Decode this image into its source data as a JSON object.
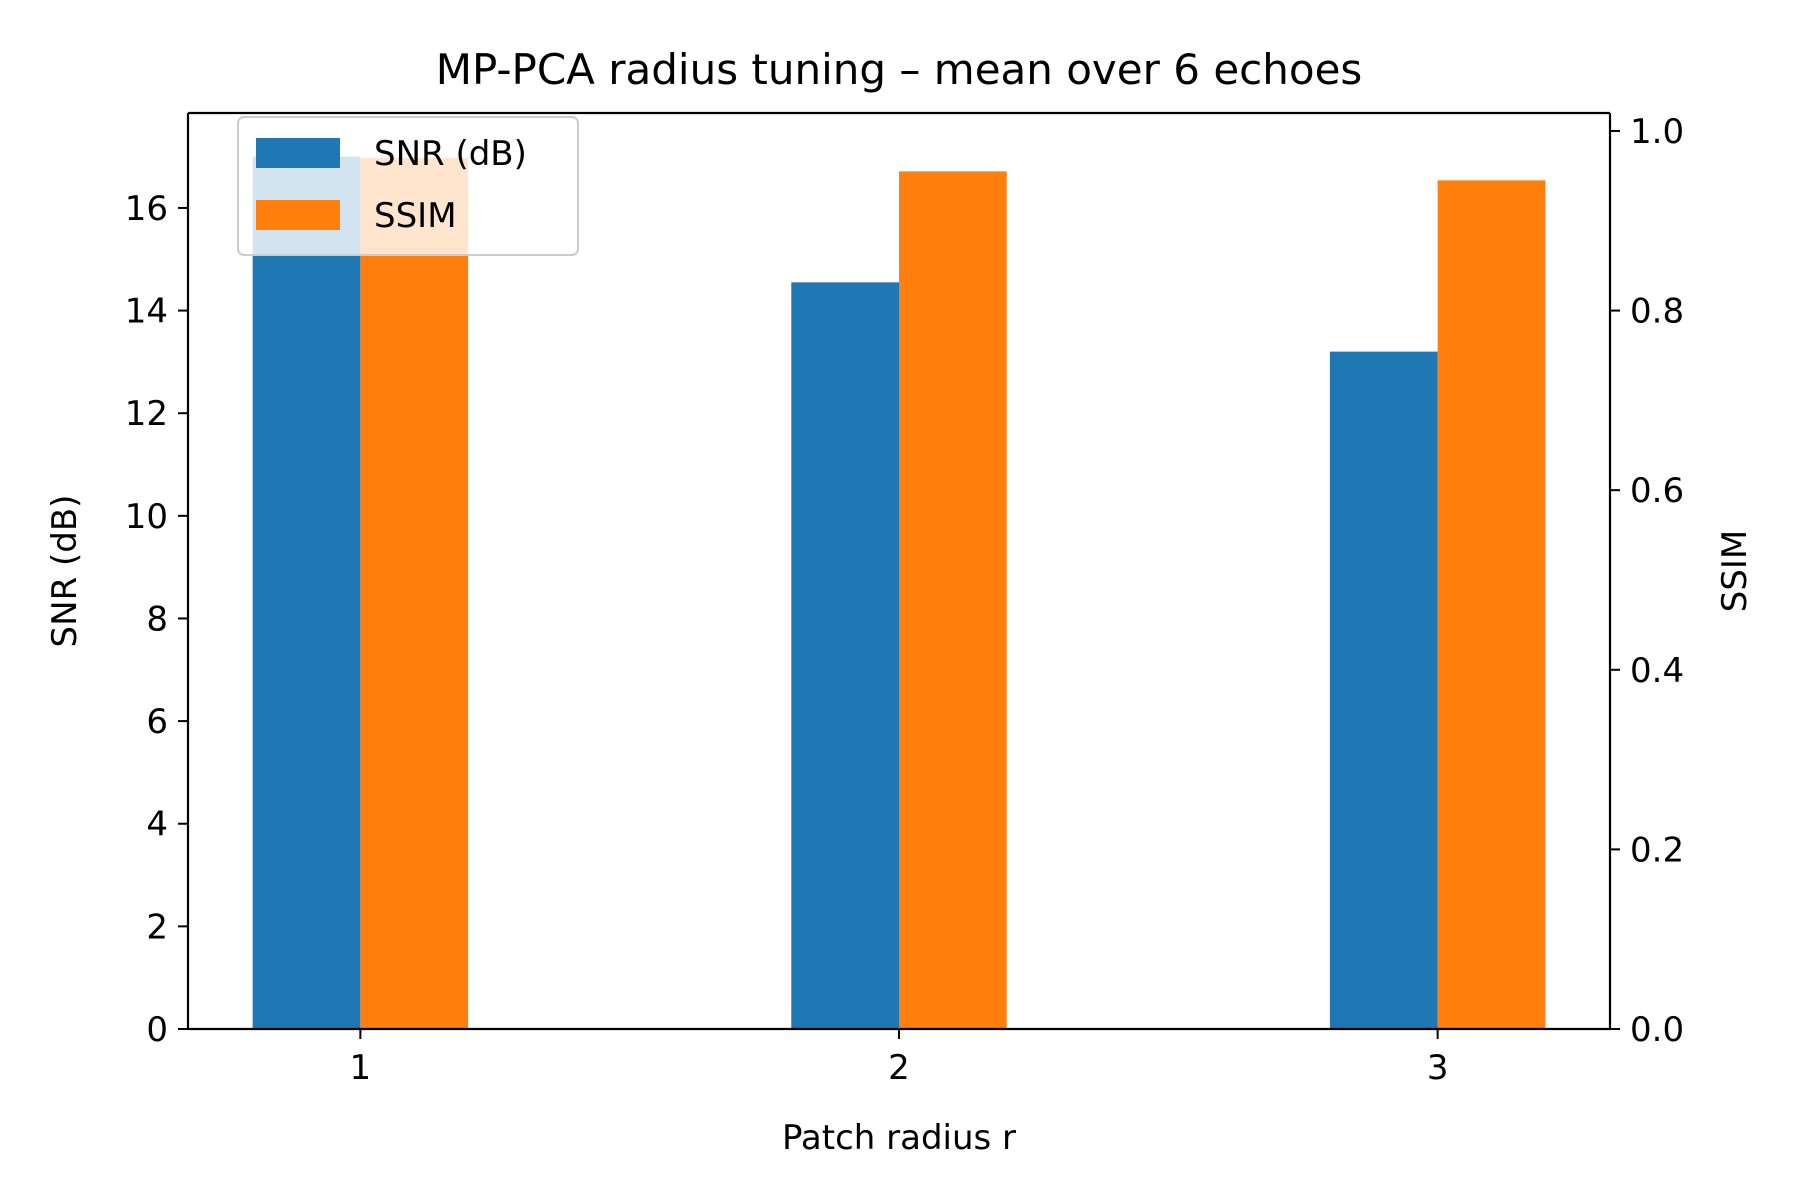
{
  "chart_data": {
    "type": "bar",
    "title": "MP-PCA radius tuning – mean over 6 echoes",
    "xlabel": "Patch radius r",
    "ylabel": "SNR (dB)",
    "ylabel_right": "SSIM",
    "categories": [
      "1",
      "2",
      "3"
    ],
    "series": [
      {
        "name": "SNR (dB)",
        "axis": "left",
        "values": [
          17.0,
          14.55,
          13.2
        ],
        "color": "#1f77b4"
      },
      {
        "name": "SSIM",
        "axis": "right",
        "values": [
          0.97,
          0.955,
          0.945
        ],
        "color": "#ff7f0e"
      }
    ],
    "ylim": [
      0,
      17.85
    ],
    "ylim_right": [
      0,
      1.02
    ],
    "yticks": [
      "0",
      "2",
      "4",
      "6",
      "8",
      "10",
      "12",
      "14",
      "16"
    ],
    "yticks_right": [
      "0.0",
      "0.2",
      "0.4",
      "0.6",
      "0.8",
      "1.0"
    ],
    "grid": false,
    "legend_position": "top-left"
  }
}
